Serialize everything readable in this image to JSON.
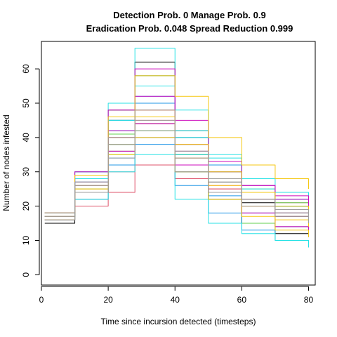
{
  "chart_data": {
    "type": "line",
    "title_line1": "Detection Prob. 0 Manage Prob. 0.9",
    "title_line2": "Eradication Prob. 0.048 Spread Reduction 0.999",
    "xlabel": "Time since incursion detected (timesteps)",
    "ylabel": "Number of nodes infested",
    "xlim": [
      0,
      82
    ],
    "ylim": [
      -3,
      68
    ],
    "x_ticks": [
      0,
      20,
      40,
      60,
      80
    ],
    "y_ticks": [
      0,
      10,
      20,
      30,
      40,
      50,
      60
    ],
    "legend": "none",
    "grid": false,
    "x": [
      1,
      10,
      20,
      28,
      40,
      50,
      60,
      70,
      80
    ],
    "series": [
      {
        "color": "#000000",
        "values": [
          15,
          30,
          45,
          58,
          40,
          30,
          22,
          18,
          13
        ]
      },
      {
        "color": "#000000",
        "values": [
          16,
          28,
          48,
          62,
          42,
          32,
          24,
          20,
          17
        ]
      },
      {
        "color": "#000000",
        "values": [
          17,
          26,
          40,
          50,
          35,
          27,
          21,
          17,
          15
        ]
      },
      {
        "color": "#000000",
        "values": [
          18,
          27,
          38,
          44,
          30,
          22,
          15,
          12,
          11
        ]
      },
      {
        "color": "#DF536B",
        "values": [
          17,
          24,
          36,
          44,
          30,
          26,
          22,
          20,
          18
        ]
      },
      {
        "color": "#DF536B",
        "values": [
          18,
          26,
          40,
          48,
          34,
          28,
          24,
          21,
          20
        ]
      },
      {
        "color": "#DF536B",
        "values": [
          18,
          20,
          30,
          40,
          28,
          22,
          18,
          14,
          12
        ]
      },
      {
        "color": "#DF536B",
        "values": [
          16,
          25,
          41,
          45,
          32,
          25,
          20,
          17,
          16
        ]
      },
      {
        "color": "#DF536B",
        "values": [
          18,
          22,
          24,
          32,
          28,
          25,
          22,
          20,
          19
        ]
      },
      {
        "color": "#61D04F",
        "values": [
          16,
          25,
          38,
          46,
          35,
          28,
          22,
          18,
          16
        ]
      },
      {
        "color": "#61D04F",
        "values": [
          17,
          27,
          41,
          50,
          36,
          30,
          25,
          21,
          19
        ]
      },
      {
        "color": "#61D04F",
        "values": [
          18,
          24,
          36,
          42,
          30,
          22,
          15,
          10,
          8
        ]
      },
      {
        "color": "#61D04F",
        "values": [
          17,
          24,
          35,
          42,
          38,
          30,
          24,
          20,
          18
        ]
      },
      {
        "color": "#2297E6",
        "values": [
          18,
          30,
          45,
          50,
          38,
          30,
          24,
          22,
          22
        ]
      },
      {
        "color": "#2297E6",
        "values": [
          17,
          24,
          34,
          38,
          26,
          18,
          13,
          10,
          8
        ]
      },
      {
        "color": "#2297E6",
        "values": [
          18,
          28,
          42,
          52,
          40,
          32,
          26,
          22,
          20
        ]
      },
      {
        "color": "#2297E6",
        "values": [
          16,
          22,
          32,
          40,
          30,
          23,
          18,
          14,
          12
        ]
      },
      {
        "color": "#28E2E5",
        "values": [
          18,
          30,
          50,
          66,
          48,
          35,
          25,
          20,
          18
        ]
      },
      {
        "color": "#28E2E5",
        "values": [
          17,
          26,
          42,
          58,
          40,
          30,
          24,
          20,
          16
        ]
      },
      {
        "color": "#28E2E5",
        "values": [
          18,
          28,
          45,
          55,
          42,
          34,
          28,
          24,
          22
        ]
      },
      {
        "color": "#28E2E5",
        "values": [
          16,
          22,
          30,
          35,
          22,
          15,
          12,
          10,
          8
        ]
      },
      {
        "color": "#28E2E5",
        "values": [
          17,
          27,
          38,
          46,
          35,
          28,
          24,
          22,
          20
        ]
      },
      {
        "color": "#CD0BBC",
        "values": [
          18,
          30,
          48,
          60,
          45,
          33,
          26,
          22,
          19
        ]
      },
      {
        "color": "#CD0BBC",
        "values": [
          17,
          26,
          42,
          52,
          38,
          28,
          22,
          18,
          15
        ]
      },
      {
        "color": "#CD0BBC",
        "values": [
          18,
          27,
          40,
          48,
          36,
          30,
          26,
          23,
          22
        ]
      },
      {
        "color": "#CD0BBC",
        "values": [
          16,
          24,
          36,
          44,
          32,
          24,
          18,
          14,
          12
        ]
      },
      {
        "color": "#F5C710",
        "values": [
          18,
          29,
          46,
          58,
          52,
          40,
          32,
          28,
          25
        ]
      },
      {
        "color": "#F5C710",
        "values": [
          17,
          25,
          38,
          46,
          34,
          26,
          20,
          16,
          14
        ]
      },
      {
        "color": "#F5C710",
        "values": [
          18,
          26,
          40,
          48,
          38,
          30,
          24,
          20,
          18
        ]
      },
      {
        "color": "#F5C710",
        "values": [
          16,
          24,
          35,
          40,
          30,
          22,
          17,
          13,
          11
        ]
      },
      {
        "color": "#9E9E9E",
        "values": [
          17,
          26,
          38,
          45,
          34,
          27,
          22,
          19,
          17
        ]
      },
      {
        "color": "#9E9E9E",
        "values": [
          18,
          27,
          40,
          48,
          36,
          28,
          22,
          18,
          16
        ]
      },
      {
        "color": "#9E9E9E",
        "values": [
          16,
          24,
          34,
          42,
          30,
          24,
          20,
          17,
          15
        ]
      }
    ]
  }
}
